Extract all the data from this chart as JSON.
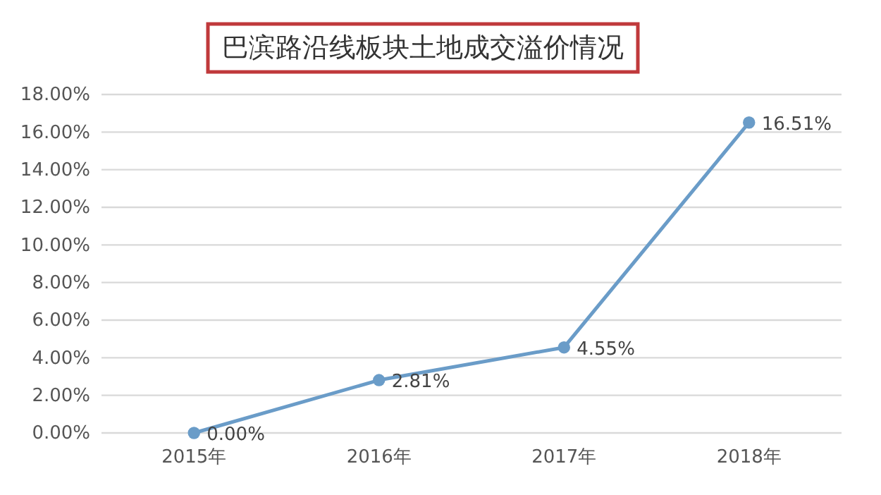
{
  "chart_data": {
    "type": "line",
    "title": "巴滨路沿线板块土地成交溢价情况",
    "categories": [
      "2015年",
      "2016年",
      "2017年",
      "2018年"
    ],
    "series": [
      {
        "color": "#6a9cc8",
        "values": [
          0,
          2.81,
          4.55,
          16.51
        ],
        "value_labels": [
          "0.00%",
          "2.81%",
          "4.55%",
          "16.51%"
        ]
      }
    ],
    "ylim": [
      0,
      18
    ],
    "yticks": [
      {
        "value": 0,
        "label": "0.00%"
      },
      {
        "value": 2,
        "label": "2.00%"
      },
      {
        "value": 4,
        "label": "4.00%"
      },
      {
        "value": 6,
        "label": "6.00%"
      },
      {
        "value": 8,
        "label": "8.00%"
      },
      {
        "value": 10,
        "label": "10.00%"
      },
      {
        "value": 12,
        "label": "12.00%"
      },
      {
        "value": 14,
        "label": "14.00%"
      },
      {
        "value": 16,
        "label": "16.00%"
      },
      {
        "value": 18,
        "label": "18.00%"
      }
    ],
    "grid": "y",
    "marker": "circle",
    "line_style": "solid"
  }
}
